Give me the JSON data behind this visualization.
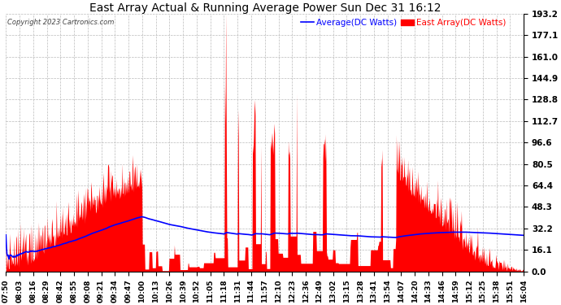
{
  "title": "East Array Actual & Running Average Power Sun Dec 31 16:12",
  "copyright": "Copyright 2023 Cartronics.com",
  "legend_avg": "Average(DC Watts)",
  "legend_east": "East Array(DC Watts)",
  "ylabel_right_values": [
    0.0,
    16.1,
    32.2,
    48.3,
    64.4,
    80.5,
    96.6,
    112.7,
    128.8,
    144.9,
    161.0,
    177.1,
    193.2
  ],
  "ymax": 193.2,
  "ymin": 0.0,
  "bg_color": "#ffffff",
  "grid_color": "#bbbbbb",
  "bar_color": "#ff0000",
  "avg_line_color": "#0000ff",
  "title_color": "#000000",
  "copyright_color": "#000000",
  "legend_avg_color": "#0000ff",
  "legend_east_color": "#ff0000",
  "x_tick_labels": [
    "07:50",
    "08:03",
    "08:16",
    "08:29",
    "08:42",
    "08:55",
    "09:08",
    "09:21",
    "09:34",
    "09:47",
    "10:00",
    "10:13",
    "10:26",
    "10:39",
    "10:52",
    "11:05",
    "11:18",
    "11:31",
    "11:44",
    "11:57",
    "12:10",
    "12:23",
    "12:36",
    "12:49",
    "13:02",
    "13:15",
    "13:28",
    "13:41",
    "13:54",
    "14:07",
    "14:20",
    "14:33",
    "14:46",
    "14:59",
    "15:12",
    "15:25",
    "15:38",
    "15:51",
    "16:04"
  ]
}
